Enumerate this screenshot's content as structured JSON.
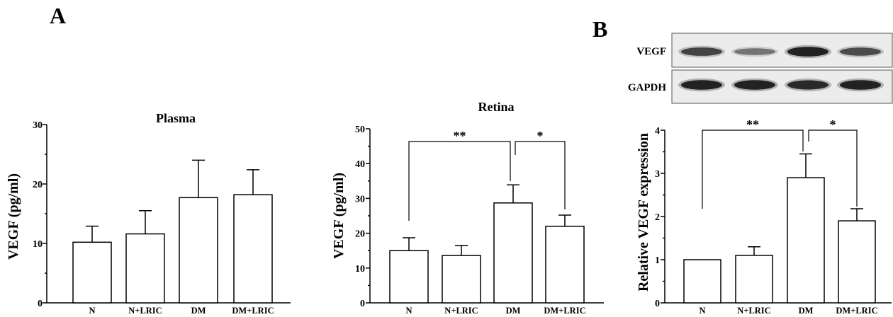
{
  "panel_labels": {
    "a": "A",
    "b": "B"
  },
  "style": {
    "bar_fill": "#ffffff",
    "bar_stroke": "#000000",
    "band_color": "#1a1a1a",
    "blot_background": "#ececec"
  },
  "western_blot": {
    "rows": [
      {
        "label": "VEGF",
        "band_intensity": [
          0.75,
          0.5,
          0.95,
          0.7
        ]
      },
      {
        "label": "GAPDH",
        "band_intensity": [
          0.95,
          0.95,
          0.9,
          0.95
        ]
      }
    ]
  },
  "chart_data": [
    {
      "type": "bar",
      "title": "Plasma",
      "ylabel": "VEGF (pg/ml)",
      "categories": [
        "N",
        "N+LRIC",
        "DM",
        "DM+LRIC"
      ],
      "values": [
        10.2,
        11.6,
        17.7,
        18.2
      ],
      "errors": [
        2.7,
        3.9,
        6.3,
        4.2
      ],
      "ylim": [
        0,
        30
      ],
      "yticks": [
        0,
        10,
        20,
        30
      ],
      "grid": false,
      "significance": []
    },
    {
      "type": "bar",
      "title": "Retina",
      "ylabel": "VEGF (pg/ml)",
      "categories": [
        "N",
        "N+LRIC",
        "DM",
        "DM+LRIC"
      ],
      "values": [
        15.0,
        13.6,
        28.7,
        22.0
      ],
      "errors": [
        3.7,
        2.9,
        5.2,
        3.2
      ],
      "ylim": [
        0,
        50
      ],
      "yticks": [
        0,
        10,
        20,
        30,
        40,
        50
      ],
      "grid": false,
      "significance": [
        {
          "from": 0,
          "to": 2,
          "label": "**"
        },
        {
          "from": 2,
          "to": 3,
          "label": "*"
        }
      ]
    },
    {
      "type": "bar",
      "ylabel": "Relative VEGF expression",
      "categories": [
        "N",
        "N+LRIC",
        "DM",
        "DM+LRIC"
      ],
      "values": [
        1.0,
        1.1,
        2.9,
        1.9
      ],
      "errors": [
        0,
        0.2,
        0.55,
        0.28
      ],
      "ylim": [
        0,
        4
      ],
      "yticks": [
        0,
        1,
        2,
        3,
        4
      ],
      "grid": false,
      "significance": [
        {
          "from": 0,
          "to": 2,
          "label": "**"
        },
        {
          "from": 2,
          "to": 3,
          "label": "*"
        }
      ]
    }
  ]
}
